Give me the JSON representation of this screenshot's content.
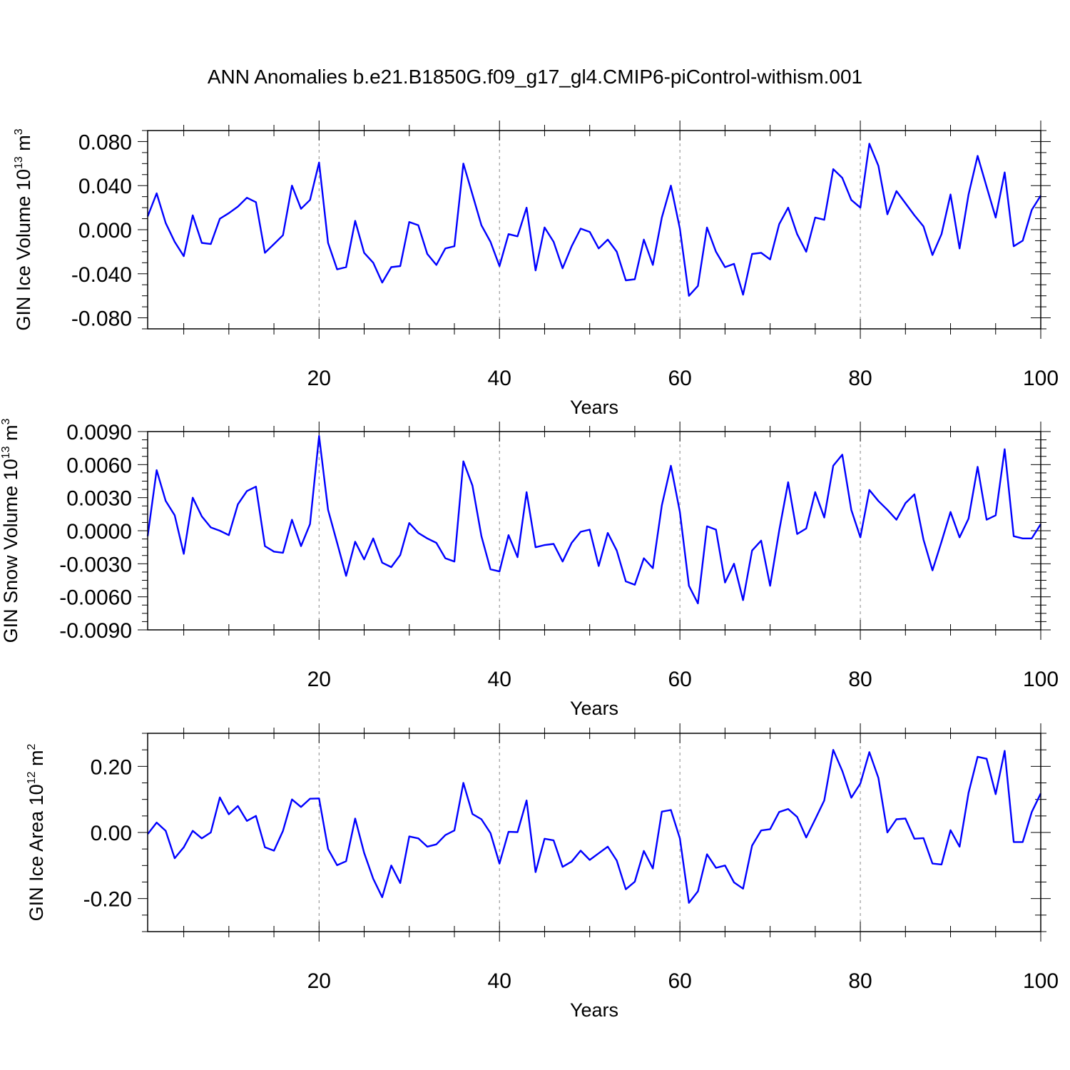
{
  "title": "ANN Anomalies b.e21.B1850G.f09_g17_gl4.CMIP6-piControl-withism.001",
  "chart_data": [
    {
      "type": "line",
      "title": "",
      "xlabel": "Years",
      "ylabel": {
        "main": "GIN Ice Volume 10",
        "exp": "13",
        "unit": " m",
        "unit_exp": "3"
      },
      "xlim": [
        1,
        100
      ],
      "ylim": [
        -0.09,
        0.09
      ],
      "xticks": [
        20,
        40,
        60,
        80,
        100
      ],
      "xtick_labels": [
        "20",
        "40",
        "60",
        "80",
        "100"
      ],
      "yticks": [
        -0.08,
        -0.04,
        0.0,
        0.04,
        0.08
      ],
      "ytick_labels": [
        "-0.080",
        "-0.040",
        "0.000",
        "0.040",
        "0.080"
      ],
      "grid": "vertical dashed at x = 20, 40, 60, 80",
      "color": "#0000ff",
      "series": [
        {
          "x": [
            1,
            2,
            3,
            4,
            5,
            6,
            7,
            8,
            9,
            10,
            11,
            12,
            13,
            14,
            15,
            16,
            17,
            18,
            19,
            20,
            21,
            22,
            23,
            24,
            25,
            26,
            27,
            28,
            29,
            30,
            31,
            32,
            33,
            34,
            35,
            36,
            37,
            38,
            39,
            40,
            41,
            42,
            43,
            44,
            45,
            46,
            47,
            48,
            49,
            50,
            51,
            52,
            53,
            54,
            55,
            56,
            57,
            58,
            59,
            60,
            61,
            62,
            63,
            64,
            65,
            66,
            67,
            68,
            69,
            70,
            71,
            72,
            73,
            74,
            75,
            76,
            77,
            78,
            79,
            80,
            81,
            82,
            83,
            84,
            85,
            86,
            87,
            88,
            89,
            90,
            91,
            92,
            93,
            94,
            95,
            96,
            97,
            98,
            99,
            100
          ],
          "values": [
            0.012,
            0.033,
            0.006,
            -0.011,
            -0.024,
            0.013,
            -0.012,
            -0.013,
            0.01,
            0.015,
            0.021,
            0.029,
            0.025,
            -0.021,
            -0.013,
            -0.005,
            0.04,
            0.019,
            0.027,
            0.061,
            -0.012,
            -0.036,
            -0.034,
            0.008,
            -0.021,
            -0.03,
            -0.048,
            -0.034,
            -0.033,
            0.007,
            0.004,
            -0.022,
            -0.032,
            -0.017,
            -0.015,
            0.06,
            0.032,
            0.004,
            -0.011,
            -0.033,
            -0.004,
            -0.006,
            0.02,
            -0.037,
            0.002,
            -0.011,
            -0.035,
            -0.015,
            0.001,
            -0.002,
            -0.017,
            -0.009,
            -0.02,
            -0.046,
            -0.045,
            -0.009,
            -0.032,
            0.011,
            0.04,
            0.001,
            -0.06,
            -0.051,
            0.002,
            -0.02,
            -0.034,
            -0.031,
            -0.059,
            -0.022,
            -0.021,
            -0.027,
            0.005,
            0.02,
            -0.004,
            -0.02,
            0.011,
            0.009,
            0.055,
            0.047,
            0.027,
            0.02,
            0.078,
            0.058,
            0.014,
            0.035,
            0.024,
            0.013,
            0.003,
            -0.023,
            -0.004,
            0.032,
            -0.017,
            0.032,
            0.067,
            0.039,
            0.011,
            0.052,
            -0.015,
            -0.01,
            0.018,
            0.031
          ]
        }
      ]
    },
    {
      "type": "line",
      "title": "",
      "xlabel": "Years",
      "ylabel": {
        "main": "GIN Snow Volume 10",
        "exp": "13",
        "unit": " m",
        "unit_exp": "3"
      },
      "xlim": [
        1,
        100
      ],
      "ylim": [
        -0.009,
        0.009
      ],
      "xticks": [
        20,
        40,
        60,
        80,
        100
      ],
      "xtick_labels": [
        "20",
        "40",
        "60",
        "80",
        "100"
      ],
      "yticks": [
        -0.009,
        -0.006,
        -0.003,
        0.0,
        0.003,
        0.006,
        0.009
      ],
      "ytick_labels": [
        "-0.0090",
        "-0.0060",
        "-0.0030",
        "0.0000",
        "0.0030",
        "0.0060",
        "0.0090"
      ],
      "grid": "vertical dashed at x = 20, 40, 60, 80",
      "color": "#0000ff",
      "series": [
        {
          "x": [
            1,
            2,
            3,
            4,
            5,
            6,
            7,
            8,
            9,
            10,
            11,
            12,
            13,
            14,
            15,
            16,
            17,
            18,
            19,
            20,
            21,
            22,
            23,
            24,
            25,
            26,
            27,
            28,
            29,
            30,
            31,
            32,
            33,
            34,
            35,
            36,
            37,
            38,
            39,
            40,
            41,
            42,
            43,
            44,
            45,
            46,
            47,
            48,
            49,
            50,
            51,
            52,
            53,
            54,
            55,
            56,
            57,
            58,
            59,
            60,
            61,
            62,
            63,
            64,
            65,
            66,
            67,
            68,
            69,
            70,
            71,
            72,
            73,
            74,
            75,
            76,
            77,
            78,
            79,
            80,
            81,
            82,
            83,
            84,
            85,
            86,
            87,
            88,
            89,
            90,
            91,
            92,
            93,
            94,
            95,
            96,
            97,
            98,
            99,
            100
          ],
          "values": [
            -0.0005,
            0.0055,
            0.0027,
            0.0014,
            -0.0021,
            0.003,
            0.0013,
            0.0003,
            0.0,
            -0.0004,
            0.0024,
            0.0036,
            0.004,
            -0.0014,
            -0.0019,
            -0.002,
            0.001,
            -0.0014,
            0.0006,
            0.0086,
            0.0019,
            -0.0011,
            -0.0041,
            -0.001,
            -0.0026,
            -0.0007,
            -0.0029,
            -0.0033,
            -0.0022,
            0.0007,
            -0.0002,
            -0.0007,
            -0.0011,
            -0.0025,
            -0.0028,
            0.0063,
            0.0041,
            -0.0005,
            -0.0035,
            -0.0037,
            -0.0004,
            -0.0024,
            0.0035,
            -0.0015,
            -0.0013,
            -0.0012,
            -0.0028,
            -0.0011,
            -0.0001,
            0.0001,
            -0.0032,
            -0.0002,
            -0.0018,
            -0.0046,
            -0.0049,
            -0.0025,
            -0.0034,
            0.0023,
            0.0059,
            0.0017,
            -0.005,
            -0.0066,
            0.0004,
            0.0001,
            -0.0047,
            -0.003,
            -0.0063,
            -0.0018,
            -0.0009,
            -0.005,
            0.0,
            0.0044,
            -0.0003,
            0.0002,
            0.0035,
            0.0012,
            0.0059,
            0.0069,
            0.0019,
            -0.0006,
            0.0037,
            0.0027,
            0.0019,
            0.001,
            0.0025,
            0.0033,
            -0.0008,
            -0.0036,
            -0.001,
            0.0017,
            -0.0006,
            0.0011,
            0.0058,
            0.001,
            0.0014,
            0.0074,
            -0.0005,
            -0.0007,
            -0.0007,
            0.0006
          ]
        }
      ]
    },
    {
      "type": "line",
      "title": "",
      "xlabel": "Years",
      "ylabel": {
        "main": "GIN Ice Area 10",
        "exp": "12",
        "unit": " m",
        "unit_exp": "2"
      },
      "xlim": [
        1,
        100
      ],
      "ylim": [
        -0.3,
        0.3
      ],
      "xticks": [
        20,
        40,
        60,
        80,
        100
      ],
      "xtick_labels": [
        "20",
        "40",
        "60",
        "80",
        "100"
      ],
      "yticks": [
        -0.2,
        0.0,
        0.2
      ],
      "ytick_labels": [
        "-0.20",
        "0.00",
        "0.20"
      ],
      "grid": "vertical dashed at x = 20, 40, 60, 80",
      "color": "#0000ff",
      "series": [
        {
          "x": [
            1,
            2,
            3,
            4,
            5,
            6,
            7,
            8,
            9,
            10,
            11,
            12,
            13,
            14,
            15,
            16,
            17,
            18,
            19,
            20,
            21,
            22,
            23,
            24,
            25,
            26,
            27,
            28,
            29,
            30,
            31,
            32,
            33,
            34,
            35,
            36,
            37,
            38,
            39,
            40,
            41,
            42,
            43,
            44,
            45,
            46,
            47,
            48,
            49,
            50,
            51,
            52,
            53,
            54,
            55,
            56,
            57,
            58,
            59,
            60,
            61,
            62,
            63,
            64,
            65,
            66,
            67,
            68,
            69,
            70,
            71,
            72,
            73,
            74,
            75,
            76,
            77,
            78,
            79,
            80,
            81,
            82,
            83,
            84,
            85,
            86,
            87,
            88,
            89,
            90,
            91,
            92,
            93,
            94,
            95,
            96,
            97,
            98,
            99,
            100
          ],
          "values": [
            -0.005,
            0.03,
            0.005,
            -0.078,
            -0.045,
            0.005,
            -0.018,
            0.0,
            0.106,
            0.055,
            0.08,
            0.035,
            0.05,
            -0.045,
            -0.055,
            0.005,
            0.1,
            0.077,
            0.102,
            0.103,
            -0.05,
            -0.099,
            -0.087,
            0.042,
            -0.062,
            -0.14,
            -0.196,
            -0.1,
            -0.153,
            -0.012,
            -0.018,
            -0.043,
            -0.036,
            -0.008,
            0.006,
            0.15,
            0.056,
            0.04,
            -0.002,
            -0.094,
            0.002,
            0.001,
            0.097,
            -0.12,
            -0.019,
            -0.024,
            -0.104,
            -0.088,
            -0.055,
            -0.083,
            -0.063,
            -0.043,
            -0.085,
            -0.172,
            -0.149,
            -0.056,
            -0.109,
            0.063,
            0.068,
            -0.018,
            -0.213,
            -0.178,
            -0.066,
            -0.107,
            -0.1,
            -0.151,
            -0.17,
            -0.04,
            0.006,
            0.01,
            0.062,
            0.071,
            0.047,
            -0.015,
            0.04,
            0.097,
            0.25,
            0.186,
            0.105,
            0.148,
            0.243,
            0.165,
            0.0,
            0.04,
            0.042,
            -0.019,
            -0.017,
            -0.094,
            -0.097,
            0.007,
            -0.043,
            0.12,
            0.229,
            0.223,
            0.116,
            0.247,
            -0.029,
            -0.029,
            0.062,
            0.118
          ]
        }
      ]
    }
  ]
}
